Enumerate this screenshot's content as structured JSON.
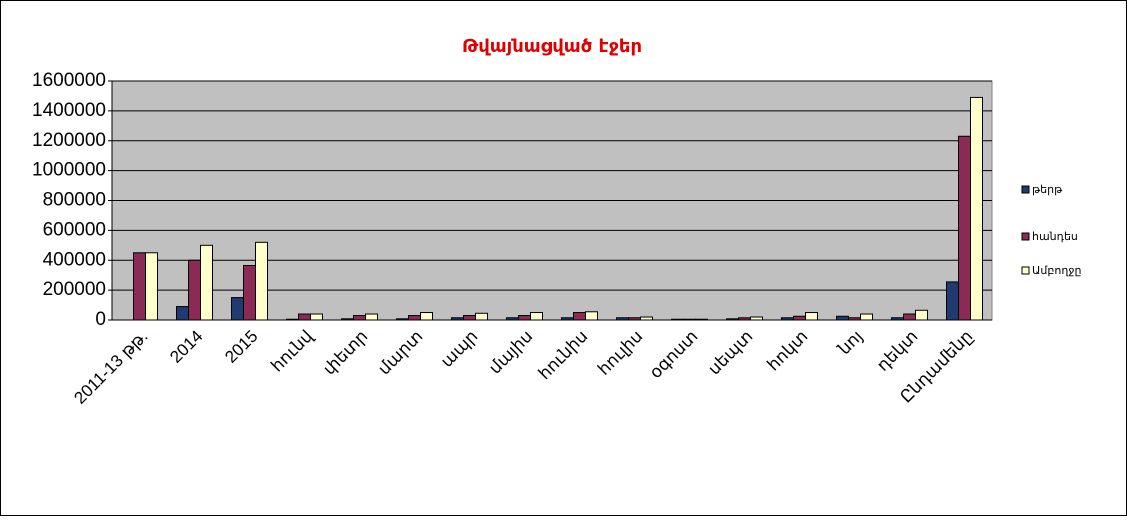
{
  "chart_data": {
    "type": "bar",
    "title": "Թվայնացված էջեր",
    "categories": [
      "2011-13 թթ.",
      "2014",
      "2015",
      "հունվ",
      "փետր",
      "մարտ",
      "ապր",
      "մայիս",
      "հունիս",
      "հուլիս",
      "օգոստ",
      "սեպտ",
      "հոկտ",
      "նոյ",
      "դեկտ",
      "Ընդամենը"
    ],
    "series": [
      {
        "name": "թերթ",
        "color": "#1f3b6f",
        "values": [
          0,
          90000,
          150000,
          5000,
          8000,
          8000,
          15000,
          15000,
          15000,
          15000,
          5000,
          8000,
          15000,
          25000,
          15000,
          255000
        ]
      },
      {
        "name": "հանդես",
        "color": "#8b2a55",
        "values": [
          450000,
          400000,
          365000,
          40000,
          30000,
          30000,
          30000,
          30000,
          50000,
          15000,
          5000,
          15000,
          25000,
          15000,
          40000,
          1230000
        ]
      },
      {
        "name": "Ամբողջը",
        "color": "#ffffcc",
        "values": [
          450000,
          500000,
          520000,
          40000,
          40000,
          50000,
          45000,
          50000,
          55000,
          20000,
          5000,
          20000,
          50000,
          40000,
          65000,
          1490000
        ]
      }
    ],
    "ylim": [
      0,
      1600000
    ],
    "yticks": [
      0,
      200000,
      400000,
      600000,
      800000,
      1000000,
      1200000,
      1400000,
      1600000
    ],
    "grid": true,
    "legend": "right"
  }
}
